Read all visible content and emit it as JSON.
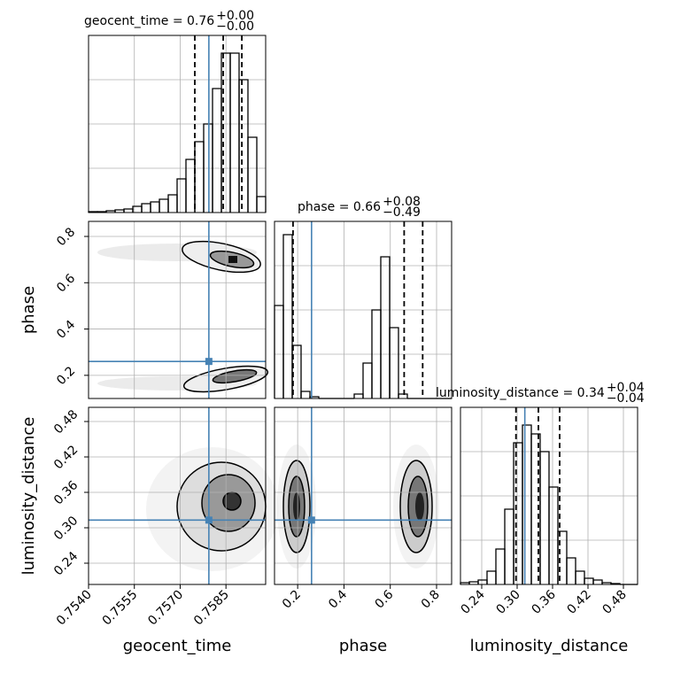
{
  "chart_data": {
    "type": "corner",
    "truth_color": "#4682b4",
    "parameters": [
      {
        "name": "geocent_time",
        "title": "geocent_time = 0.76",
        "title_plus": "+0.00",
        "title_minus": "−0.00",
        "xlim": [
          0.754,
          0.7598
        ],
        "xticks": [
          {
            "value": 0.754,
            "label": "0.7540"
          },
          0.7555,
          {
            "value": 0.757,
            "label": "0.7570"
          },
          0.7585
        ],
        "truth": 0.75794,
        "quantiles": [
          0.75748,
          0.75841,
          0.75902
        ],
        "bins": [
          0.754,
          0.75429,
          0.75458,
          0.75487,
          0.75516,
          0.75545,
          0.75574,
          0.75603,
          0.75632,
          0.75661,
          0.7569,
          0.75719,
          0.75748,
          0.75777,
          0.75806,
          0.75835,
          0.75864,
          0.75893,
          0.75922,
          0.75951,
          0.7598
        ],
        "counts": [
          1,
          1,
          2,
          3,
          4,
          7,
          10,
          12,
          15,
          20,
          38,
          60,
          80,
          100,
          140,
          180,
          180,
          150,
          85,
          18
        ],
        "countlim": [
          0,
          200
        ]
      },
      {
        "name": "phase",
        "title": "phase = 0.66",
        "title_plus": "+0.08",
        "title_minus": "−0.49",
        "xlim": [
          0.1,
          0.865
        ],
        "xticks": [
          0.2,
          0.4,
          0.6,
          0.8
        ],
        "truth": 0.26,
        "quantiles": [
          0.18,
          0.66,
          0.74
        ],
        "bins": [
          0.1,
          0.13825,
          0.1765,
          0.21475,
          0.253,
          0.29125,
          0.3295,
          0.36775,
          0.406,
          0.44425,
          0.4825,
          0.52075,
          0.559,
          0.59725,
          0.6355,
          0.67375,
          0.712,
          0.75025,
          0.7885,
          0.82675,
          0.865
        ],
        "counts": [
          105,
          185,
          60,
          8,
          2,
          0,
          0,
          0,
          0,
          5,
          40,
          100,
          160,
          80,
          5,
          0,
          0,
          0,
          0,
          0
        ],
        "countlim": [
          0,
          200
        ]
      },
      {
        "name": "luminosity_distance",
        "title": "luminosity_distance = 0.34",
        "title_plus": "+0.04",
        "title_minus": "−0.04",
        "xlim": [
          0.204,
          0.504
        ],
        "xticks": [
          0.24,
          {
            "value": 0.3,
            "label": "0.30"
          },
          0.36,
          0.42,
          0.48
        ],
        "truth": 0.313,
        "quantiles": [
          0.298,
          0.336,
          0.372
        ],
        "bins": [
          0.204,
          0.219,
          0.234,
          0.249,
          0.264,
          0.279,
          0.294,
          0.309,
          0.324,
          0.339,
          0.354,
          0.369,
          0.384,
          0.399,
          0.414,
          0.429,
          0.444,
          0.459,
          0.474,
          0.489,
          0.504
        ],
        "counts": [
          2,
          3,
          5,
          15,
          40,
          85,
          160,
          180,
          170,
          150,
          110,
          60,
          30,
          15,
          7,
          5,
          2,
          1,
          0,
          0
        ],
        "countlim": [
          0,
          200
        ]
      }
    ]
  }
}
